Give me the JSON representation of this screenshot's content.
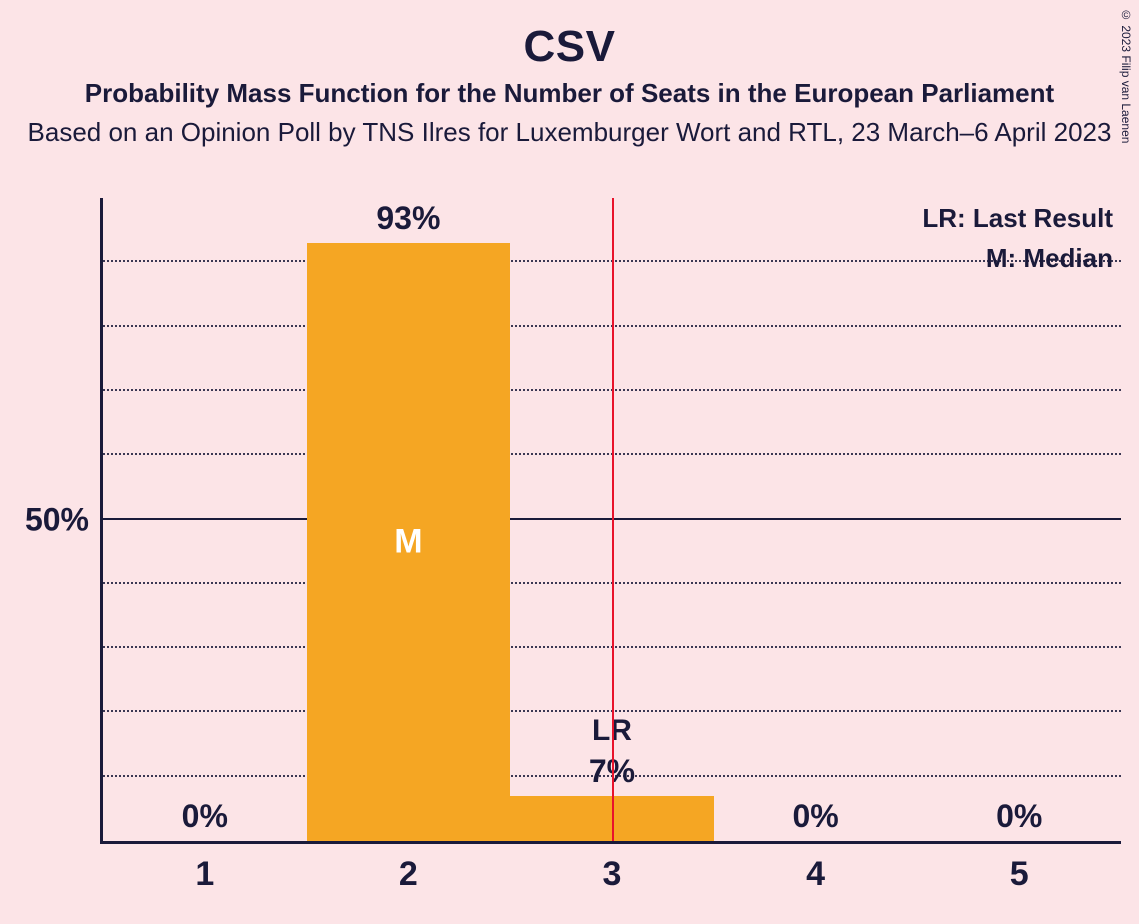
{
  "copyright": "© 2023 Filip van Laenen",
  "title": "CSV",
  "subtitle1": "Probability Mass Function for the Number of Seats in the European Parliament",
  "subtitle2": "Based on an Opinion Poll by TNS Ilres for Luxemburger Wort and RTL, 23 March–6 April 2023",
  "chart": {
    "type": "bar",
    "background_color": "#fce4e7",
    "axis_color": "#1a1a3a",
    "bar_color": "#f5a623",
    "lr_line_color": "#e8132b",
    "text_color": "#1a1a3a",
    "median_text_color": "#ffffff",
    "title_fontsize": 44,
    "subtitle_fontsize": 26,
    "label_fontsize": 32,
    "xtick_fontsize": 34,
    "legend_fontsize": 26,
    "ylim": [
      0,
      100
    ],
    "ytick_major": 50,
    "ytick_minor": 10,
    "ylabel_50": "50%",
    "categories": [
      "1",
      "2",
      "3",
      "4",
      "5"
    ],
    "values": [
      0,
      93,
      7,
      0,
      0
    ],
    "value_labels": [
      "0%",
      "93%",
      "7%",
      "0%",
      "0%"
    ],
    "bar_width": 1.0,
    "median_index": 1,
    "median_marker": "M",
    "last_result_index": 2,
    "last_result_marker": "LR",
    "lr_line_position": 2.5,
    "legend": {
      "lr": "LR: Last Result",
      "m": "M: Median"
    }
  }
}
